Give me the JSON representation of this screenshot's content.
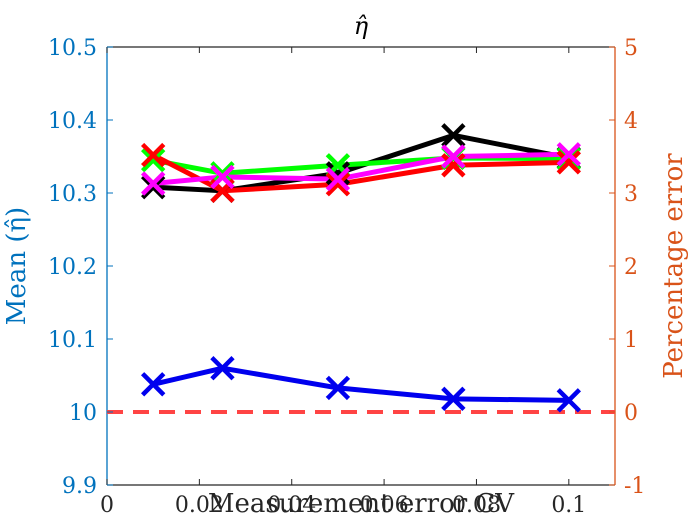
{
  "chart_data": {
    "type": "line",
    "title": "η̂",
    "xlabel": "Measurement error CV",
    "ylabel_left": "Mean (η̂)",
    "ylabel_right": "Percentage error",
    "xlim": [
      0,
      0.11
    ],
    "ylim_left": [
      9.9,
      10.5
    ],
    "ylim_right": [
      -1,
      5
    ],
    "xticks": [
      "0",
      "0.02",
      "0.04",
      "0.06",
      "0.08",
      "0.1"
    ],
    "xtick_values": [
      0,
      0.02,
      0.04,
      0.06,
      0.08,
      0.1
    ],
    "yticks_left": [
      "9.9",
      "10",
      "10.1",
      "10.2",
      "10.3",
      "10.4",
      "10.5"
    ],
    "ytick_values_left": [
      9.9,
      10.0,
      10.1,
      10.2,
      10.3,
      10.4,
      10.5
    ],
    "yticks_right": [
      "-1",
      "0",
      "1",
      "2",
      "3",
      "4",
      "5"
    ],
    "ytick_values_right": [
      -1,
      0,
      1,
      2,
      3,
      4,
      5
    ],
    "x": [
      0.01,
      0.025,
      0.05,
      0.075,
      0.1
    ],
    "series": [
      {
        "name": "black",
        "color": "#000000",
        "axis": "right",
        "values": [
          3.08,
          3.03,
          3.27,
          3.79,
          3.48
        ]
      },
      {
        "name": "green",
        "color": "#00ff00",
        "axis": "right",
        "values": [
          3.45,
          3.27,
          3.38,
          3.48,
          3.47
        ]
      },
      {
        "name": "red",
        "color": "#ff0000",
        "axis": "right",
        "values": [
          3.52,
          3.03,
          3.12,
          3.38,
          3.42
        ]
      },
      {
        "name": "magenta",
        "color": "#ff00ff",
        "axis": "right",
        "values": [
          3.13,
          3.22,
          3.19,
          3.5,
          3.53
        ]
      },
      {
        "name": "blue",
        "color": "#0000ee",
        "axis": "left",
        "values": [
          10.038,
          10.06,
          10.033,
          10.018,
          10.016
        ]
      }
    ],
    "reference_line": {
      "value": 10.0,
      "axis": "left",
      "color": "#ff4444",
      "style": "dashed"
    },
    "axis_color_left": "#0072bd",
    "axis_color_right": "#d95319",
    "grid": false
  }
}
